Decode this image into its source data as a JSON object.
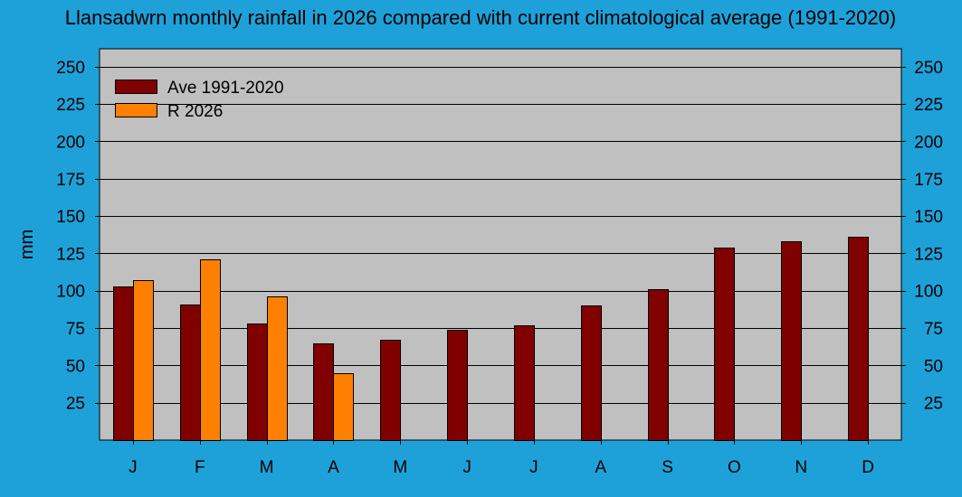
{
  "colors": {
    "background": "#1ea1d8",
    "plot_area": "#c0c0c0",
    "average_bar": "#800000",
    "year_bar": "#ff8000",
    "gridline": "#000000"
  },
  "chart_data": {
    "type": "bar",
    "title": "Llansadwrn monthly rainfall in 2026 compared with current climatological average (1991-2020)",
    "xlabel": "",
    "ylabel": "mm",
    "ylim": [
      0,
      262
    ],
    "yticks": [
      25,
      50,
      75,
      100,
      125,
      150,
      175,
      200,
      225,
      250
    ],
    "grid": true,
    "legend_position": "top-left",
    "categories": [
      "J",
      "F",
      "M",
      "A",
      "M",
      "J",
      "J",
      "A",
      "S",
      "O",
      "N",
      "D"
    ],
    "series": [
      {
        "name": "Ave 1991-2020",
        "color": "#800000",
        "values": [
          103,
          91,
          78,
          65,
          67,
          74,
          77,
          90,
          101,
          129,
          133,
          136
        ]
      },
      {
        "name": "R 2026",
        "color": "#ff8000",
        "values": [
          107,
          121,
          96,
          45,
          null,
          null,
          null,
          null,
          null,
          null,
          null,
          null
        ]
      }
    ]
  }
}
